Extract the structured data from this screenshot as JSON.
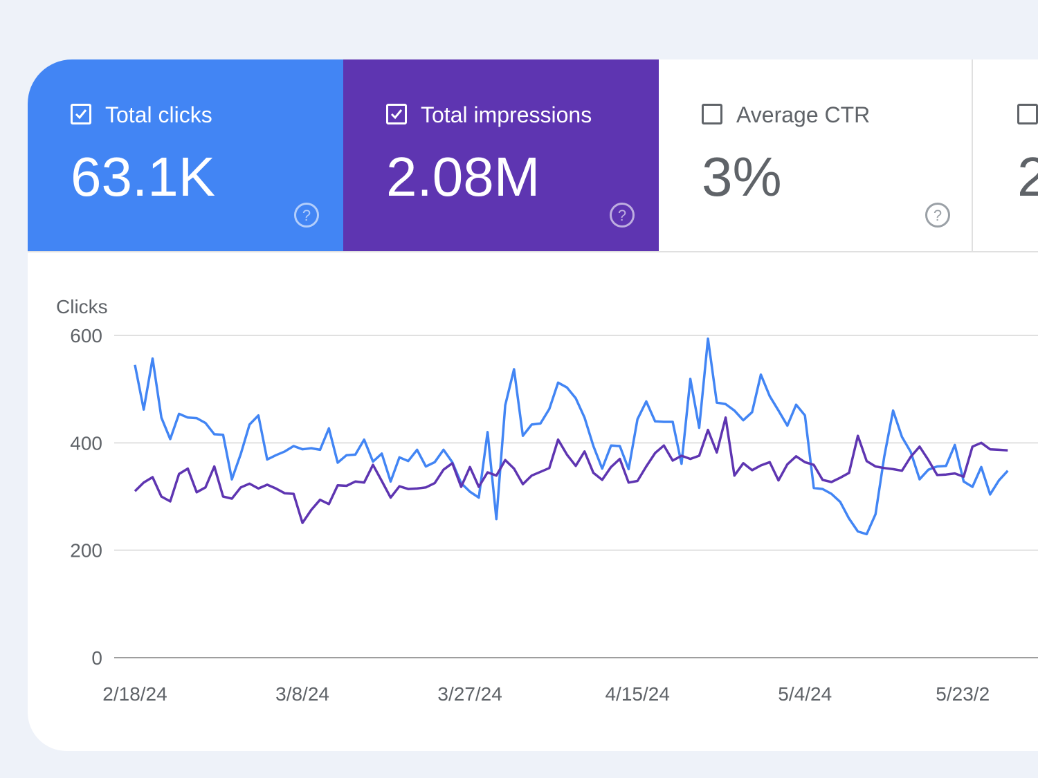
{
  "metrics": [
    {
      "label": "Total clicks",
      "value": "63.1K",
      "checked": true,
      "color": "#4285f4"
    },
    {
      "label": "Total impressions",
      "value": "2.08M",
      "checked": true,
      "color": "#5e35b1"
    },
    {
      "label": "Average CTR",
      "value": "3%",
      "checked": false
    },
    {
      "label": "",
      "value": "2",
      "checked": false
    }
  ],
  "chart_data": {
    "type": "line",
    "ylabel": "Clicks",
    "ylim": [
      0,
      600
    ],
    "y_ticks": [
      "600",
      "400",
      "200",
      "0"
    ],
    "x_ticks": [
      "2/18/24",
      "3/8/24",
      "3/27/24",
      "4/15/24",
      "5/4/24",
      "5/23/2"
    ],
    "grid": true,
    "series": [
      {
        "color": "#4285f4",
        "values": [
          545,
          462,
          557,
          447,
          407,
          454,
          447,
          446,
          437,
          416,
          415,
          332,
          379,
          434,
          451,
          369,
          377,
          384,
          394,
          388,
          390,
          387,
          427,
          363,
          377,
          378,
          406,
          365,
          380,
          328,
          373,
          366,
          387,
          356,
          364,
          387,
          364,
          325,
          309,
          298,
          420,
          258,
          470,
          537,
          413,
          434,
          436,
          463,
          512,
          503,
          483,
          447,
          394,
          352,
          395,
          394,
          351,
          444,
          477,
          440,
          439,
          439,
          361,
          519,
          428,
          594,
          475,
          472,
          460,
          442,
          457,
          527,
          487,
          460,
          432,
          471,
          451,
          316,
          314,
          305,
          290,
          259,
          235,
          230,
          267,
          375,
          460,
          411,
          383,
          332,
          350,
          356,
          357,
          396,
          328,
          318,
          355,
          304,
          330,
          348
        ]
      },
      {
        "color": "#5e35b1",
        "values": [
          310,
          326,
          336,
          300,
          291,
          342,
          352,
          308,
          317,
          356,
          300,
          296,
          317,
          324,
          315,
          322,
          315,
          306,
          305,
          251,
          275,
          294,
          286,
          321,
          320,
          328,
          326,
          359,
          329,
          298,
          319,
          314,
          315,
          317,
          325,
          350,
          362,
          318,
          355,
          318,
          345,
          339,
          368,
          352,
          323,
          339,
          346,
          353,
          406,
          378,
          357,
          384,
          344,
          331,
          355,
          370,
          326,
          329,
          356,
          381,
          395,
          367,
          376,
          370,
          376,
          424,
          382,
          447,
          339,
          362,
          349,
          358,
          364,
          330,
          360,
          375,
          364,
          359,
          331,
          327,
          335,
          344,
          413,
          366,
          356,
          353,
          351,
          348,
          374,
          393,
          368,
          340,
          341,
          343,
          337,
          393,
          400,
          388,
          387,
          386
        ]
      }
    ]
  }
}
